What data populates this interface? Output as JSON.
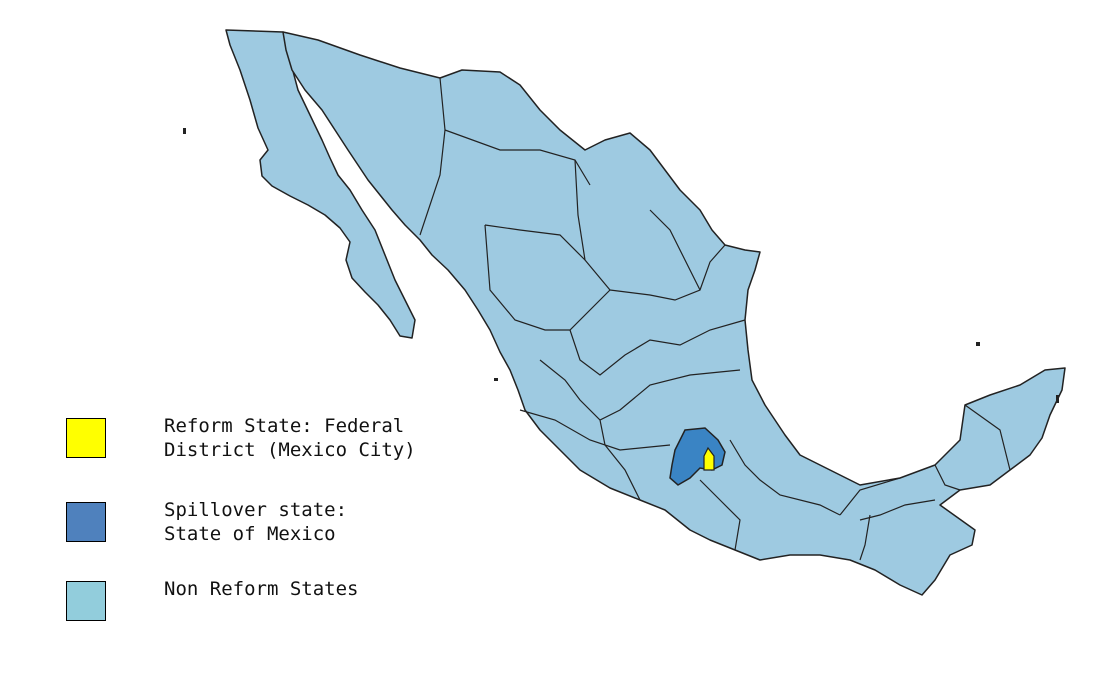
{
  "legend": {
    "items": [
      {
        "key": "reform",
        "label": "Reform State: Federal\nDistrict (Mexico City)",
        "color": "#ffff00"
      },
      {
        "key": "spillover",
        "label": "Spillover state:\nState of Mexico",
        "color": "#4f81bd"
      },
      {
        "key": "non_reform",
        "label": "Non Reform States",
        "color": "#92cddc"
      }
    ]
  },
  "map": {
    "regions": [
      {
        "name": "Federal District (Mexico City)",
        "category": "reform"
      },
      {
        "name": "State of Mexico",
        "category": "spillover"
      },
      {
        "name": "Non Reform States",
        "category": "non_reform"
      }
    ],
    "colors": {
      "non_reform_fill": "#9ecae1",
      "spillover_fill": "#3a84c4",
      "reform_fill": "#ffff00",
      "border": "#222222"
    }
  }
}
